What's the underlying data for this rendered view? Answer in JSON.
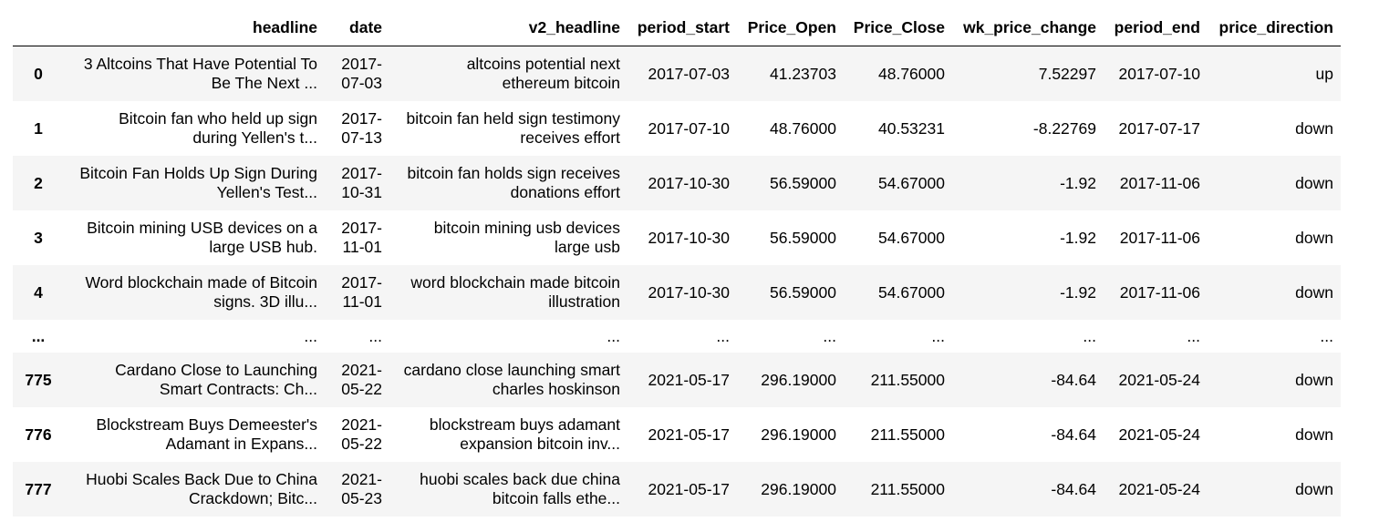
{
  "table": {
    "columns": [
      "",
      "headline",
      "date",
      "v2_headline",
      "period_start",
      "Price_Open",
      "Price_Close",
      "wk_price_change",
      "period_end",
      "price_direction"
    ],
    "rows": [
      {
        "index": "0",
        "headline": "3 Altcoins That Have Potential To Be The Next ...",
        "date": "2017-07-03",
        "v2_headline": "altcoins potential next ethereum bitcoin",
        "period_start": "2017-07-03",
        "price_open": "41.23703",
        "price_close": "48.76000",
        "wk_price_change": "7.52297",
        "period_end": "2017-07-10",
        "price_direction": "up"
      },
      {
        "index": "1",
        "headline": "Bitcoin fan who held up sign during Yellen's t...",
        "date": "2017-07-13",
        "v2_headline": "bitcoin fan held sign testimony receives effort",
        "period_start": "2017-07-10",
        "price_open": "48.76000",
        "price_close": "40.53231",
        "wk_price_change": "-8.22769",
        "period_end": "2017-07-17",
        "price_direction": "down"
      },
      {
        "index": "2",
        "headline": "Bitcoin Fan Holds Up Sign During Yellen's Test...",
        "date": "2017-10-31",
        "v2_headline": "bitcoin fan holds sign receives donations effort",
        "period_start": "2017-10-30",
        "price_open": "56.59000",
        "price_close": "54.67000",
        "wk_price_change": "-1.92",
        "period_end": "2017-11-06",
        "price_direction": "down"
      },
      {
        "index": "3",
        "headline": "Bitcoin mining USB devices on a large USB hub.",
        "date": "2017-11-01",
        "v2_headline": "bitcoin mining usb devices large usb",
        "period_start": "2017-10-30",
        "price_open": "56.59000",
        "price_close": "54.67000",
        "wk_price_change": "-1.92",
        "period_end": "2017-11-06",
        "price_direction": "down"
      },
      {
        "index": "4",
        "headline": "Word blockchain made of Bitcoin signs. 3D illu...",
        "date": "2017-11-01",
        "v2_headline": "word blockchain made bitcoin illustration",
        "period_start": "2017-10-30",
        "price_open": "56.59000",
        "price_close": "54.67000",
        "wk_price_change": "-1.92",
        "period_end": "2017-11-06",
        "price_direction": "down"
      },
      {
        "index": "...",
        "headline": "...",
        "date": "...",
        "v2_headline": "...",
        "period_start": "...",
        "price_open": "...",
        "price_close": "...",
        "wk_price_change": "...",
        "period_end": "...",
        "price_direction": "...",
        "ellipsis": true
      },
      {
        "index": "775",
        "headline": "Cardano Close to Launching Smart Contracts: Ch...",
        "date": "2021-05-22",
        "v2_headline": "cardano close launching smart charles hoskinson",
        "period_start": "2021-05-17",
        "price_open": "296.19000",
        "price_close": "211.55000",
        "wk_price_change": "-84.64",
        "period_end": "2021-05-24",
        "price_direction": "down"
      },
      {
        "index": "776",
        "headline": "Blockstream Buys Demeester's Adamant in Expans...",
        "date": "2021-05-22",
        "v2_headline": "blockstream buys adamant expansion bitcoin inv...",
        "period_start": "2021-05-17",
        "price_open": "296.19000",
        "price_close": "211.55000",
        "wk_price_change": "-84.64",
        "period_end": "2021-05-24",
        "price_direction": "down"
      },
      {
        "index": "777",
        "headline": "Huobi Scales Back Due to China Crackdown; Bitc...",
        "date": "2021-05-23",
        "v2_headline": "huobi scales back due china bitcoin falls ethe...",
        "period_start": "2021-05-17",
        "price_open": "296.19000",
        "price_close": "211.55000",
        "wk_price_change": "-84.64",
        "period_end": "2021-05-24",
        "price_direction": "down"
      }
    ]
  }
}
